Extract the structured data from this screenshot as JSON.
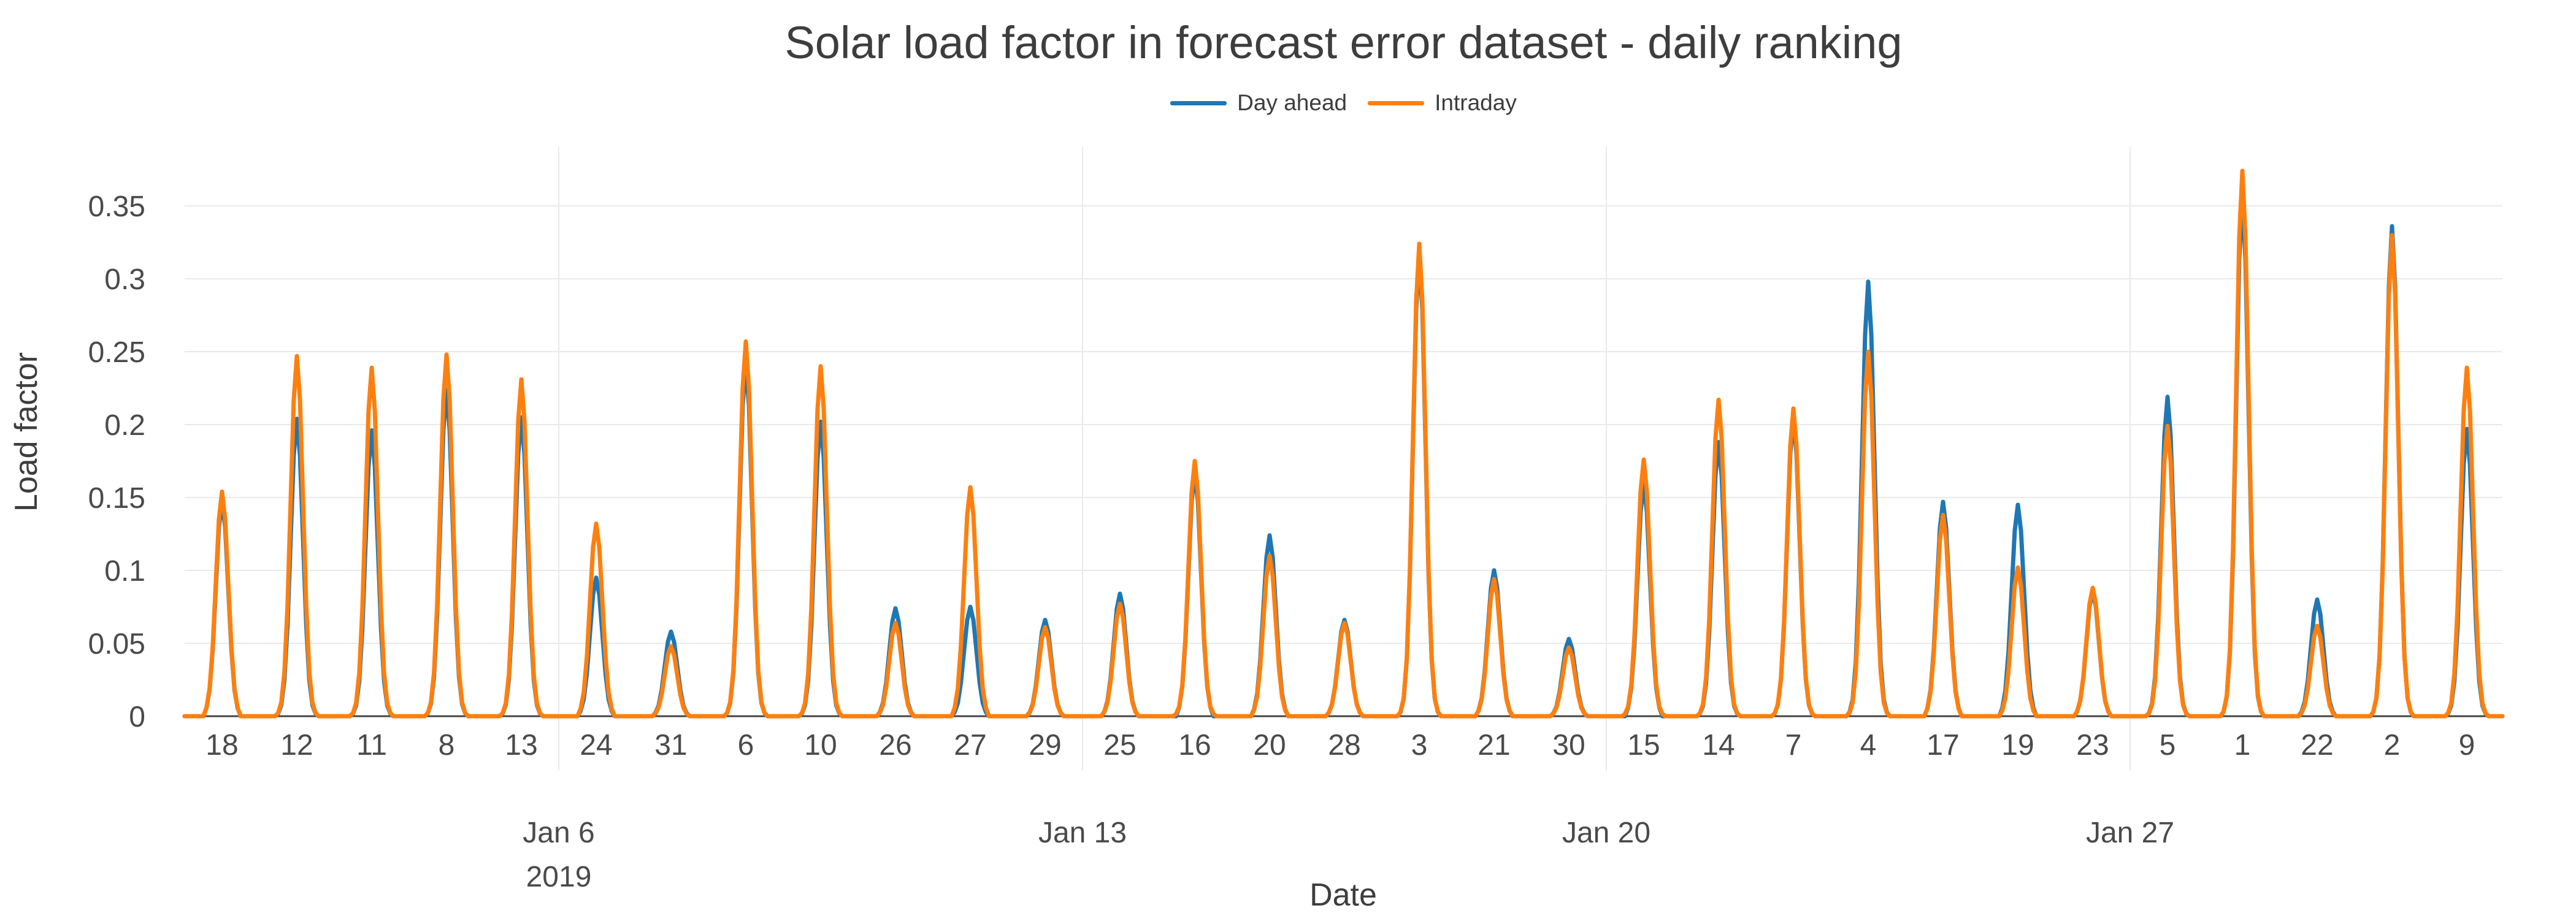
{
  "chart_data": {
    "type": "line",
    "title": "Solar load factor in forecast error dataset - daily ranking",
    "xlabel": "Date",
    "ylabel": "Load factor",
    "grid": true,
    "legend_position": "top-center",
    "x_axis": {
      "month": "Jan",
      "year_label": "2019",
      "days_in_month": 31,
      "day_rank_labels": [
        "18",
        "12",
        "11",
        "8",
        "13",
        "24",
        "31",
        "6",
        "10",
        "26",
        "27",
        "29",
        "25",
        "16",
        "20",
        "28",
        "3",
        "21",
        "30",
        "15",
        "14",
        "7",
        "4",
        "17",
        "19",
        "23",
        "5",
        "1",
        "22",
        "2",
        "9"
      ],
      "week_ticks": [
        {
          "day": 6,
          "label": "Jan 6"
        },
        {
          "day": 13,
          "label": "Jan 13"
        },
        {
          "day": 20,
          "label": "Jan 20"
        },
        {
          "day": 27,
          "label": "Jan 27"
        }
      ]
    },
    "y_axis": {
      "ticks": [
        0,
        0.05,
        0.1,
        0.15,
        0.2,
        0.25,
        0.3,
        0.35
      ],
      "range": [
        0,
        0.39
      ]
    },
    "series": [
      {
        "name": "Day ahead",
        "color": "#1f77b4",
        "daily_peaks": [
          0.148,
          0.204,
          0.196,
          0.224,
          0.205,
          0.095,
          0.058,
          0.243,
          0.202,
          0.074,
          0.075,
          0.066,
          0.084,
          0.168,
          0.124,
          0.066,
          0.317,
          0.1,
          0.053,
          0.16,
          0.188,
          0.205,
          0.298,
          0.147,
          0.145,
          0.086,
          0.219,
          0.357,
          0.08,
          0.336,
          0.197
        ]
      },
      {
        "name": "Intraday",
        "color": "#ff7f0e",
        "daily_peaks": [
          0.154,
          0.247,
          0.239,
          0.248,
          0.231,
          0.132,
          0.048,
          0.257,
          0.24,
          0.064,
          0.157,
          0.061,
          0.077,
          0.175,
          0.11,
          0.064,
          0.324,
          0.094,
          0.047,
          0.176,
          0.217,
          0.211,
          0.25,
          0.138,
          0.102,
          0.088,
          0.199,
          0.374,
          0.062,
          0.33,
          0.239
        ]
      }
    ]
  },
  "colors": {
    "background": "#ffffff",
    "grid": "#e9e9e9",
    "axis_line": "#444444",
    "title_text": "#3d3d3d",
    "tick_text": "#4a4a4a"
  }
}
